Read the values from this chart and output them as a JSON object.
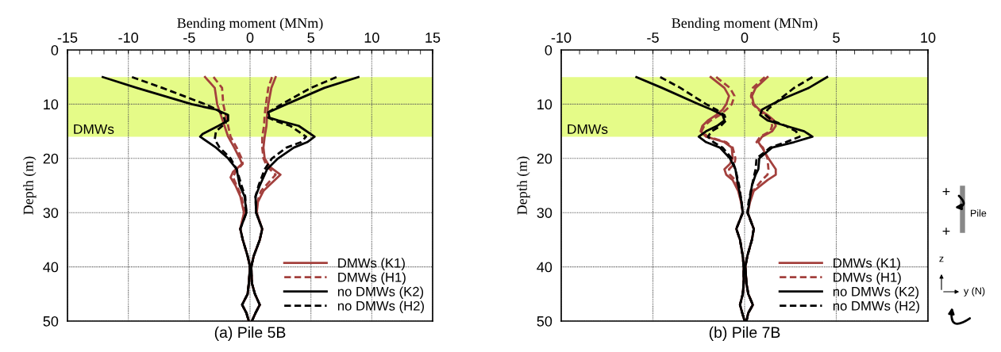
{
  "chart_data": [
    {
      "type": "line",
      "xlabel": "Bending moment (MNm)",
      "ylabel": "Depth (m)",
      "xlim": [
        -15,
        15
      ],
      "xticks": [
        -15,
        -10,
        -5,
        0,
        5,
        10,
        15
      ],
      "ylim": [
        50,
        0
      ],
      "yticks": [
        0,
        10,
        20,
        30,
        40,
        50
      ],
      "grid": true,
      "legend": "bottom right",
      "marker": "none",
      "bands": [
        {
          "axis": "y",
          "from": 5,
          "to": 16,
          "label": "DMWs",
          "color": "#e5fb88"
        }
      ],
      "annotations": [
        "(a) Pile 5B"
      ],
      "series": [
        {
          "name": "DMWs (K1)",
          "color": "#a3403d",
          "line_style": "solid",
          "x": [
            2.1,
            1.75,
            1.5,
            1.4,
            1.35,
            1.2,
            1.1,
            1.2,
            1.6,
            2.5,
            1.8,
            1.1,
            0.65,
            0.55,
            1.0,
            0.8,
            0.3,
            0.1,
            0.15,
            0.4,
            0.8,
            0.45,
            0.15
          ],
          "values": [
            5,
            7,
            10,
            12,
            14,
            16,
            18,
            20,
            21.5,
            23,
            24.5,
            26,
            28,
            30,
            33,
            35,
            38,
            40,
            43,
            45,
            47,
            48.5,
            50
          ]
        },
        {
          "color": "#a3403d",
          "line_style": "solid",
          "x": [
            -3.7,
            -2.9,
            -2.7,
            -2.4,
            -2.1,
            -1.8,
            -1.3,
            -0.85,
            -0.65,
            -1.4,
            -1.6,
            -1.2,
            -0.8,
            -0.5,
            -0.8,
            -0.6,
            -0.2,
            0,
            -0.1,
            -0.2,
            -0.65,
            -0.3,
            -0.1
          ],
          "values": [
            5,
            7,
            10,
            12,
            14,
            16,
            18,
            20,
            21,
            22.5,
            23.5,
            25,
            27,
            30,
            33,
            35,
            38,
            40,
            43,
            45,
            47,
            48.5,
            50
          ]
        },
        {
          "name": "DMWs (H1)",
          "color": "#a3403d",
          "line_style": "dashed",
          "x": [
            1.8,
            1.5,
            1.3,
            1.2,
            1.15,
            1.0,
            1.0,
            1.1,
            1.4,
            2.1,
            1.5,
            0.9,
            0.6,
            0.5,
            1.0,
            0.8,
            0.3,
            0.1,
            0.15,
            0.4,
            0.8,
            0.45,
            0.15
          ],
          "values": [
            5,
            7,
            10,
            12,
            14,
            16,
            18,
            20,
            21.5,
            23,
            24.5,
            26,
            28,
            30,
            33,
            35,
            38,
            40,
            43,
            45,
            47,
            48.5,
            50
          ]
        },
        {
          "color": "#a3403d",
          "line_style": "dashed",
          "x": [
            -3.0,
            -2.3,
            -2.2,
            -2.0,
            -1.8,
            -1.6,
            -1.1,
            -0.7,
            -0.6,
            -1.2,
            -1.4,
            -1.1,
            -0.7,
            -0.45,
            -0.8,
            -0.6,
            -0.2,
            0,
            -0.1,
            -0.2,
            -0.65,
            -0.3,
            -0.1
          ],
          "values": [
            5,
            7,
            10,
            12,
            14,
            16,
            18,
            20,
            21,
            22.5,
            23.5,
            25,
            27,
            30,
            33,
            35,
            38,
            40,
            43,
            45,
            47,
            48.5,
            50
          ]
        },
        {
          "name": "no DMWs (K2)",
          "color": "#000000",
          "line_style": "solid",
          "x": [
            8.9,
            6.1,
            3.0,
            1.5,
            1.6,
            2.3,
            4.0,
            5.3,
            4.7,
            3.6,
            2.3,
            1.4,
            0.8,
            0.45,
            0.5,
            1.0,
            0.8,
            0.3,
            0.1,
            0.15,
            0.4,
            0.8,
            0.45,
            0.15
          ],
          "values": [
            5,
            7,
            10,
            11.5,
            12.5,
            13,
            14,
            16,
            17,
            18,
            20,
            22,
            25,
            27,
            30,
            33,
            35,
            38,
            40,
            43,
            45,
            47,
            48.5,
            50
          ]
        },
        {
          "color": "#000000",
          "line_style": "solid",
          "x": [
            -12.1,
            -9.3,
            -4.8,
            -2.8,
            -1.8,
            -1.8,
            -2.6,
            -3.9,
            -4.1,
            -2.8,
            -1.8,
            -1.1,
            -0.85,
            -0.45,
            -0.3,
            -0.8,
            -0.6,
            -0.2,
            0,
            -0.1,
            -0.2,
            -0.65,
            -0.3,
            -0.1
          ],
          "values": [
            5,
            7,
            10,
            11,
            12,
            13,
            14,
            15.5,
            16,
            18,
            20,
            22,
            25,
            27,
            30,
            33,
            35,
            38,
            40,
            43,
            45,
            47,
            48.5,
            50
          ]
        },
        {
          "name": "no DMWs (H2)",
          "color": "#000000",
          "line_style": "dashed",
          "x": [
            7.1,
            5.0,
            2.6,
            1.5,
            1.5,
            2.0,
            3.3,
            4.6,
            4.2,
            3.0,
            1.8,
            1.2,
            0.7,
            0.45,
            0.5,
            1.0,
            0.8,
            0.3,
            0.1,
            0.15,
            0.4,
            0.8,
            0.45,
            0.15
          ],
          "values": [
            5,
            7,
            10,
            11.5,
            12.5,
            13,
            14,
            16,
            17,
            18,
            20,
            22,
            25,
            27,
            30,
            33,
            35,
            38,
            40,
            43,
            45,
            47,
            48.5,
            50
          ]
        },
        {
          "color": "#000000",
          "line_style": "dashed",
          "x": [
            -9.7,
            -7.2,
            -3.7,
            -2.7,
            -2.2,
            -2.0,
            -2.8,
            -2.9,
            -2.5,
            -1.6,
            -1.1,
            -0.7,
            -0.4,
            -0.3,
            -0.8,
            -0.6,
            -0.2,
            0,
            -0.1,
            -0.2,
            -0.65,
            -0.3,
            -0.1
          ],
          "values": [
            5,
            7,
            10,
            11,
            12,
            13.5,
            15,
            16.5,
            18,
            20,
            22,
            25,
            27,
            30,
            33,
            35,
            38,
            40,
            43,
            45,
            47,
            48.5,
            50
          ]
        }
      ]
    },
    {
      "type": "line",
      "xlabel": "Bending moment (MNm)",
      "ylabel": "Depth (m)",
      "xlim": [
        -10,
        10
      ],
      "xticks": [
        -10,
        -5,
        0,
        5,
        10
      ],
      "ylim": [
        50,
        0
      ],
      "yticks": [
        0,
        10,
        20,
        30,
        40,
        50
      ],
      "grid": true,
      "legend": "bottom right",
      "marker": "none",
      "bands": [
        {
          "axis": "y",
          "from": 5,
          "to": 16,
          "label": "DMWs",
          "color": "#e5fb88"
        }
      ],
      "annotations": [
        "(b) Pile 7B",
        "+",
        "+",
        "Pile",
        "z",
        "y (N)"
      ],
      "series": [
        {
          "name": "DMWs (K1)",
          "color": "#a3403d",
          "line_style": "solid",
          "x": [
            1.25,
            0.6,
            0.4,
            0.5,
            0.8,
            1.25,
            1.6,
            1.7,
            1.5,
            0.95,
            0.75,
            0.95,
            1.3,
            1.7,
            1.7,
            1.25,
            0.5,
            0.3,
            0.17,
            0.5,
            0.4,
            0.15,
            0.04,
            0.1,
            0.2,
            0.45,
            0.2,
            0.1
          ],
          "values": [
            5,
            7,
            8.5,
            10,
            11,
            12,
            13,
            14,
            15,
            16,
            17,
            18,
            20,
            22,
            23,
            24,
            26,
            28,
            30,
            33,
            35,
            38,
            40,
            43,
            45,
            47,
            48.5,
            50
          ]
        },
        {
          "color": "#a3403d",
          "line_style": "solid",
          "x": [
            -1.85,
            -1.1,
            -0.85,
            -1.0,
            -1.2,
            -1.55,
            -2.0,
            -2.3,
            -2.4,
            -2.1,
            -1.1,
            -0.7,
            -0.65,
            -0.8,
            -1.1,
            -1.0,
            -0.65,
            -0.35,
            -0.2,
            -0.1,
            -0.45,
            -0.25,
            -0.1,
            -0.05,
            -0.05,
            -0.1,
            -0.25,
            -0.13,
            0
          ],
          "values": [
            5,
            7,
            8.5,
            10,
            11,
            12,
            13,
            14,
            15,
            16,
            17,
            18,
            20,
            21,
            22,
            23,
            24,
            26,
            28,
            30,
            33,
            35,
            38,
            40,
            43,
            45,
            47,
            48.5,
            50
          ]
        },
        {
          "name": "DMWs (H1)",
          "color": "#a3403d",
          "line_style": "dashed",
          "x": [
            1.1,
            0.45,
            0.35,
            0.45,
            0.75,
            1.1,
            1.45,
            1.5,
            1.4,
            0.85,
            0.65,
            1.0,
            1.25,
            1.3,
            1.25,
            0.95,
            0.45,
            0.25,
            0.17,
            0.5,
            0.4,
            0.15,
            0.04,
            0.1,
            0.2,
            0.45,
            0.2,
            0.1
          ],
          "values": [
            5,
            7,
            8.5,
            10,
            11,
            12,
            13,
            14,
            15,
            16,
            17,
            18,
            20,
            22,
            23,
            24,
            26,
            28,
            30,
            33,
            35,
            38,
            40,
            43,
            45,
            47,
            48.5,
            50
          ]
        },
        {
          "color": "#a3403d",
          "line_style": "dashed",
          "x": [
            -1.55,
            -0.8,
            -0.55,
            -0.7,
            -1.0,
            -1.35,
            -1.85,
            -2.2,
            -2.35,
            -2.0,
            -1.0,
            -0.65,
            -0.5,
            -0.55,
            -0.85,
            -0.8,
            -0.5,
            -0.27,
            -0.17,
            -0.1,
            -0.45,
            -0.25,
            -0.1,
            -0.05,
            -0.05,
            -0.1,
            -0.25,
            -0.13,
            0
          ],
          "values": [
            5,
            7,
            8.5,
            10,
            11,
            12,
            13,
            14,
            15,
            16,
            17,
            18,
            20,
            21,
            22,
            23,
            24,
            26,
            28,
            30,
            33,
            35,
            38,
            40,
            43,
            45,
            47,
            48.5,
            50
          ]
        },
        {
          "name": "no DMWs (K2)",
          "color": "#000000",
          "line_style": "solid",
          "x": [
            4.5,
            3.5,
            2.1,
            1.5,
            0.95,
            0.85,
            1.25,
            2.25,
            3.25,
            3.7,
            2.7,
            1.5,
            0.8,
            0.75,
            0.6,
            0.4,
            0.26,
            0.17,
            0.5,
            0.4,
            0.15,
            0.04,
            0.1,
            0.2,
            0.45,
            0.2,
            0.1
          ],
          "values": [
            5,
            7,
            9,
            10,
            11,
            12,
            13,
            14,
            15,
            16,
            17,
            18,
            20,
            22,
            23,
            25,
            28,
            30,
            33,
            35,
            38,
            40,
            43,
            45,
            47,
            48.5,
            50
          ]
        },
        {
          "color": "#000000",
          "line_style": "solid",
          "x": [
            -5.9,
            -4.5,
            -2.5,
            -1.8,
            -1.2,
            -1.1,
            -1.5,
            -2.1,
            -2.5,
            -2.1,
            -1.35,
            -0.8,
            -0.5,
            -0.35,
            -0.17,
            -0.1,
            -0.45,
            -0.25,
            -0.1,
            -0.05,
            -0.05,
            -0.1,
            -0.25,
            -0.13,
            0
          ],
          "values": [
            5,
            7,
            10,
            11,
            12,
            13,
            14,
            15,
            16,
            17,
            18,
            20,
            22,
            25,
            28,
            30,
            33,
            35,
            38,
            40,
            43,
            45,
            47,
            48.5,
            50
          ]
        },
        {
          "name": "no DMWs (H2)",
          "color": "#000000",
          "line_style": "dashed",
          "x": [
            3.7,
            2.7,
            1.95,
            1.6,
            1.25,
            1.15,
            1.5,
            2.25,
            2.8,
            3.0,
            2.25,
            1.4,
            0.65,
            0.6,
            0.4,
            0.22,
            0.15,
            0.5,
            0.4,
            0.15,
            0.04,
            0.1,
            0.2,
            0.45,
            0.2,
            0.1
          ],
          "values": [
            5,
            7,
            9,
            10,
            11,
            12,
            13,
            14,
            15,
            16,
            17,
            18,
            20,
            22,
            25,
            28,
            30,
            33,
            35,
            38,
            40,
            43,
            45,
            47,
            48.5,
            50
          ]
        },
        {
          "color": "#000000",
          "line_style": "dashed",
          "x": [
            -4.6,
            -3.5,
            -2.1,
            -1.55,
            -1.1,
            -1.0,
            -1.3,
            -1.8,
            -2.0,
            -1.7,
            -1.2,
            -0.7,
            -0.5,
            -0.3,
            -0.17,
            -0.1,
            -0.45,
            -0.25,
            -0.1,
            -0.05,
            -0.05,
            -0.1,
            -0.25,
            -0.13,
            0
          ],
          "values": [
            5,
            7,
            10,
            11,
            12,
            13,
            14,
            15,
            16,
            17,
            18,
            20,
            22,
            25,
            28,
            30,
            33,
            35,
            38,
            40,
            43,
            45,
            47,
            48.5,
            50
          ]
        }
      ]
    }
  ]
}
